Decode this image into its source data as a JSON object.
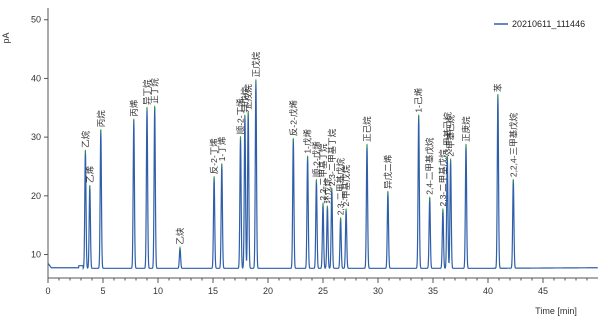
{
  "chart_data": {
    "type": "line",
    "ylabel": "pA",
    "xlabel": "Time [min]",
    "xlim": [
      0,
      50
    ],
    "ylim": [
      6,
      52
    ],
    "x_ticks": [
      0,
      5,
      10,
      15,
      20,
      25,
      30,
      35,
      40,
      45
    ],
    "y_ticks": [
      10,
      20,
      30,
      40,
      50
    ],
    "grid": false,
    "legend_position": "top-right",
    "baseline_y": 7.5,
    "series": [
      {
        "name": "20210611_111446",
        "color": "#2f5fa8"
      }
    ],
    "peaks": [
      {
        "time": 3.4,
        "height": 27.5,
        "label": "乙烷"
      },
      {
        "time": 3.8,
        "height": 21.5,
        "label": "乙烯"
      },
      {
        "time": 4.8,
        "height": 31.0,
        "label": "丙烷"
      },
      {
        "time": 7.8,
        "height": 32.8,
        "label": "丙烯"
      },
      {
        "time": 9.0,
        "height": 34.8,
        "label": "异丁烷"
      },
      {
        "time": 9.7,
        "height": 35.0,
        "label": "正丁烷"
      },
      {
        "time": 12.0,
        "height": 11.0,
        "label": "乙炔"
      },
      {
        "time": 15.1,
        "height": 23.0,
        "label": "反-2-丁烯"
      },
      {
        "time": 15.8,
        "height": 25.2,
        "label": "1-丁烯"
      },
      {
        "time": 17.5,
        "height": 29.8,
        "label": "顺-2-丁烯"
      },
      {
        "time": 17.9,
        "height": 33.5,
        "label": "异戊烷"
      },
      {
        "time": 18.2,
        "height": 34.0,
        "label": "正戊烷"
      },
      {
        "time": 18.9,
        "height": 39.5,
        "label": "正戊烷"
      },
      {
        "time": 22.3,
        "height": 29.5,
        "label": "反-2-戊烯"
      },
      {
        "time": 23.6,
        "height": 26.5,
        "label": "1-戊烯"
      },
      {
        "time": 24.4,
        "height": 22.5,
        "label": "顺-2-戊烯"
      },
      {
        "time": 25.0,
        "height": 18.5,
        "label": "2,2-二甲基丁烷"
      },
      {
        "time": 25.4,
        "height": 18.0,
        "label": "环戊烷"
      },
      {
        "time": 25.8,
        "height": 21.0,
        "label": "2,3-二甲基丁烷"
      },
      {
        "time": 26.6,
        "height": 16.0,
        "label": "2,3-二甲基戊烷"
      },
      {
        "time": 27.1,
        "height": 17.5,
        "label": "2-甲基戊烷"
      },
      {
        "time": 29.0,
        "height": 28.5,
        "label": "正己烷"
      },
      {
        "time": 30.9,
        "height": 20.5,
        "label": "异戊二烯"
      },
      {
        "time": 33.7,
        "height": 33.5,
        "label": "1-己烯"
      },
      {
        "time": 34.7,
        "height": 19.5,
        "label": "2,4-二甲基戊烷"
      },
      {
        "time": 35.9,
        "height": 17.5,
        "label": "2,3-二甲基戊烷"
      },
      {
        "time": 36.3,
        "height": 26.5,
        "label": "3-甲基己烷"
      },
      {
        "time": 36.6,
        "height": 26.0,
        "label": "2-甲基己烷"
      },
      {
        "time": 38.0,
        "height": 28.5,
        "label": "正庚烷"
      },
      {
        "time": 40.9,
        "height": 37.0,
        "label": "苯"
      },
      {
        "time": 42.3,
        "height": 22.5,
        "label": "2,2,4-三甲基戊烷"
      }
    ]
  }
}
